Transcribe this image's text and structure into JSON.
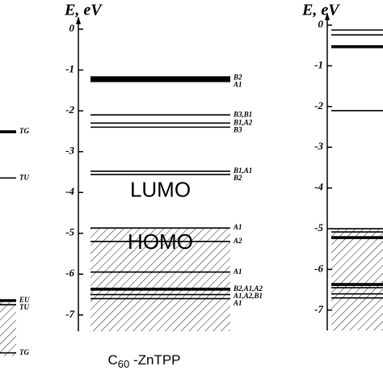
{
  "chart_data": [
    {
      "type": "levels",
      "level_labels": [
        "TG",
        "TU",
        "EU",
        "TU",
        "TG"
      ],
      "values": [
        -2.51,
        -3.64,
        -6.64,
        -6.74,
        -7.92
      ],
      "thick": [
        true,
        false,
        true,
        false,
        false
      ],
      "ylim": [
        -8,
        0.2
      ],
      "hatch_from": -6.64
    },
    {
      "type": "levels",
      "y_label": "E, eV",
      "caption": {
        "base": "C",
        "sub": "60",
        "rest": " -ZnTPP"
      },
      "level_labels": [
        "B2",
        "A1",
        "B3,B1",
        "B1,A2",
        "B3",
        "B1,A1",
        "B2",
        "A1",
        "A2",
        "A1",
        "B2,A1,A2",
        "A1,A2,B1",
        "A1"
      ],
      "values": [
        -1.19,
        -1.26,
        -2.1,
        -2.3,
        -2.4,
        -3.48,
        -3.56,
        -4.87,
        -5.2,
        -5.95,
        -6.37,
        -6.5,
        -6.6
      ],
      "thick": [
        true,
        true,
        false,
        false,
        false,
        false,
        false,
        false,
        false,
        false,
        true,
        false,
        false
      ],
      "ylim": [
        -7.4,
        0.2
      ],
      "yticks": [
        0,
        -1,
        -2,
        -3,
        -4,
        -5,
        -6,
        -7
      ],
      "hatch_from": -4.87,
      "annotations": [
        {
          "text": "LUMO",
          "y": -3.97
        },
        {
          "text": "HOMO",
          "y": -5.25
        }
      ]
    },
    {
      "type": "levels",
      "y_label": "E, eV",
      "values": [
        -0.12,
        -0.24,
        -0.53,
        -2.1,
        -5.0,
        -5.08,
        -5.22,
        -6.37,
        -6.45,
        -6.6,
        -6.7
      ],
      "thick": [
        false,
        false,
        true,
        false,
        false,
        false,
        true,
        true,
        false,
        false,
        false
      ],
      "ylim": [
        -7.5,
        0.2
      ],
      "yticks": [
        0,
        -1,
        -2,
        -3,
        -4,
        -5,
        -6,
        -7
      ],
      "hatch_from": -5.0
    }
  ]
}
